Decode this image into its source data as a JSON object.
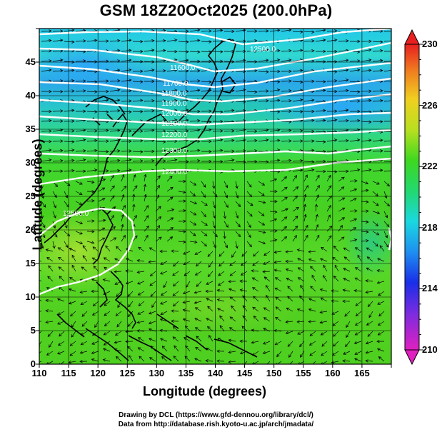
{
  "title": "GSM 18Z20Oct2025 (200.0hPa)",
  "x_axis": {
    "label": "Longitude (degrees)",
    "ticks": [
      "110",
      "115",
      "120",
      "125",
      "130",
      "135",
      "140",
      "145",
      "150",
      "155",
      "160",
      "165"
    ],
    "range": [
      110,
      170
    ]
  },
  "y_axis": {
    "label": "Latitude  (degrees)",
    "ticks": [
      "0",
      "5",
      "10",
      "15",
      "20",
      "25",
      "30",
      "35",
      "40",
      "45"
    ],
    "range": [
      0,
      50
    ]
  },
  "colorbar": {
    "labels": [
      "230",
      "226",
      "222",
      "218",
      "214",
      "210"
    ],
    "min": 210,
    "max": 230
  },
  "contours": [
    {
      "label": "11600.0"
    },
    {
      "label": "11700.0"
    },
    {
      "label": "11800.0"
    },
    {
      "label": "11900.0"
    },
    {
      "label": "12000.0"
    },
    {
      "label": "12100.0"
    },
    {
      "label": "12200.0"
    },
    {
      "label": "12300.0"
    },
    {
      "label": "12400.0"
    },
    {
      "label": "12500.0"
    },
    {
      "label": "12500.0"
    }
  ],
  "credits": {
    "line1": "Drawing by DCL (https://www.gfd-dennou.org/library/dcl/)",
    "line2": "Data from http://database.rish.kyoto-u.ac.jp/arch/jmadata/"
  },
  "chart_data": {
    "type": "heatmap",
    "title": "GSM 18Z20Oct2025 (200.0hPa)",
    "xlabel": "Longitude (degrees)",
    "ylabel": "Latitude  (degrees)",
    "xlim": [
      110,
      170
    ],
    "ylim": [
      0,
      50
    ],
    "colorbar_range": [
      210,
      230
    ],
    "field": "temperature (shaded), streamlines, geopotential height contours",
    "contour_levels": [
      11600,
      11700,
      11800,
      11900,
      12000,
      12100,
      12200,
      12300,
      12400,
      12500
    ]
  }
}
